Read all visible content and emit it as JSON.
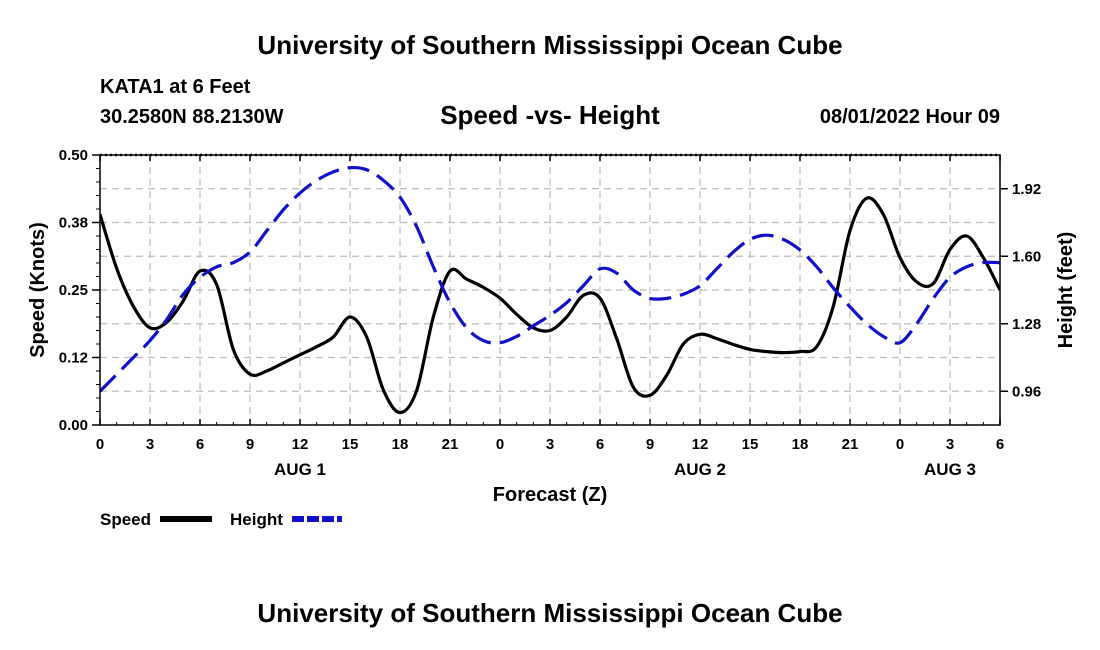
{
  "header": {
    "title": "University of Southern Mississippi Ocean Cube",
    "station": "KATA1 at 6 Feet",
    "coordinates": "30.2580N  88.2130W",
    "subtitle": "Speed -vs- Height",
    "datetime": "08/01/2022 Hour 09"
  },
  "footer": {
    "title": "University of Southern Mississippi Ocean Cube"
  },
  "colors": {
    "speed": "#000000",
    "height": "#1010c8",
    "grid": "#bbbbbb"
  },
  "chart_data": {
    "type": "line",
    "xlabel": "Forecast (Z)",
    "ylabel_left": "Speed (Knots)",
    "ylabel_right": "Height (feet)",
    "x_range": [
      0,
      54
    ],
    "x_ticks": [
      0,
      3,
      6,
      9,
      12,
      15,
      18,
      21,
      24,
      27,
      30,
      33,
      36,
      39,
      42,
      45,
      48,
      51,
      54
    ],
    "x_tick_labels": [
      "0",
      "3",
      "6",
      "9",
      "12",
      "15",
      "18",
      "21",
      "0",
      "3",
      "6",
      "9",
      "12",
      "15",
      "18",
      "21",
      "0",
      "3",
      "6"
    ],
    "date_labels": [
      {
        "hour": 12,
        "label": "AUG 1"
      },
      {
        "hour": 36,
        "label": "AUG 2"
      },
      {
        "hour": 51,
        "label": "AUG 3"
      }
    ],
    "y_left_range": [
      0,
      0.5
    ],
    "y_left_ticks": [
      0,
      0.125,
      0.25,
      0.375,
      0.5
    ],
    "y_left_tick_labels": [
      "0.00",
      "0.12",
      "0.25",
      "0.38",
      "0.50"
    ],
    "y_right_range": [
      0.8,
      2.08
    ],
    "y_right_ticks": [
      0.96,
      1.28,
      1.6,
      1.92
    ],
    "y_right_tick_labels": [
      "0.96",
      "1.28",
      "1.60",
      "1.92"
    ],
    "grid": true,
    "legend": {
      "placement": "bottom-left",
      "entries": [
        {
          "name": "Speed",
          "style": "solid"
        },
        {
          "name": "Height",
          "style": "dashed"
        }
      ]
    },
    "series": [
      {
        "name": "Speed",
        "axis": "left",
        "style": "solid",
        "x": [
          0,
          1,
          2,
          3,
          4,
          5,
          6,
          7,
          8,
          9,
          10,
          11,
          12,
          13,
          14,
          15,
          16,
          17,
          18,
          19,
          20,
          21,
          22,
          23,
          24,
          25,
          26,
          27,
          28,
          29,
          30,
          31,
          32,
          33,
          34,
          35,
          36,
          37,
          38,
          39,
          40,
          41,
          42,
          43,
          44,
          45,
          46,
          47,
          48,
          49,
          50,
          51,
          52,
          53,
          54
        ],
        "values": [
          0.39,
          0.29,
          0.22,
          0.18,
          0.19,
          0.23,
          0.285,
          0.26,
          0.14,
          0.094,
          0.1,
          0.115,
          0.13,
          0.145,
          0.163,
          0.2,
          0.163,
          0.065,
          0.023,
          0.064,
          0.2,
          0.285,
          0.27,
          0.255,
          0.235,
          0.205,
          0.18,
          0.175,
          0.2,
          0.24,
          0.235,
          0.16,
          0.07,
          0.055,
          0.092,
          0.15,
          0.168,
          0.16,
          0.149,
          0.14,
          0.136,
          0.134,
          0.136,
          0.145,
          0.22,
          0.36,
          0.42,
          0.39,
          0.31,
          0.265,
          0.262,
          0.325,
          0.35,
          0.31,
          0.25
        ]
      },
      {
        "name": "Height",
        "axis": "right",
        "style": "dashed",
        "x": [
          0,
          1,
          2,
          3,
          4,
          5,
          6,
          7,
          8,
          9,
          10,
          11,
          12,
          13,
          14,
          15,
          16,
          17,
          18,
          19,
          20,
          21,
          22,
          23,
          24,
          25,
          26,
          27,
          28,
          29,
          30,
          31,
          32,
          33,
          34,
          35,
          36,
          37,
          38,
          39,
          40,
          41,
          42,
          43,
          44,
          45,
          46,
          47,
          48,
          49,
          50,
          51,
          52,
          53,
          54
        ],
        "values": [
          0.96,
          1.04,
          1.12,
          1.2,
          1.3,
          1.42,
          1.5,
          1.55,
          1.57,
          1.62,
          1.72,
          1.82,
          1.9,
          1.96,
          2.0,
          2.02,
          2.01,
          1.96,
          1.88,
          1.74,
          1.55,
          1.38,
          1.26,
          1.2,
          1.19,
          1.22,
          1.27,
          1.32,
          1.38,
          1.46,
          1.54,
          1.52,
          1.44,
          1.4,
          1.4,
          1.42,
          1.46,
          1.54,
          1.62,
          1.68,
          1.7,
          1.68,
          1.63,
          1.55,
          1.45,
          1.36,
          1.28,
          1.22,
          1.19,
          1.28,
          1.4,
          1.5,
          1.55,
          1.57,
          1.57
        ]
      }
    ]
  }
}
